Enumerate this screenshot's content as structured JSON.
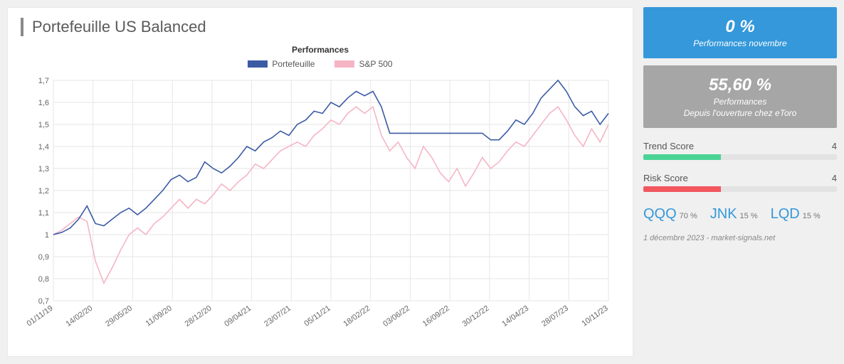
{
  "title": "Portefeuille US Balanced",
  "chart": {
    "title": "Performances",
    "legend": [
      {
        "label": "Portefeuille",
        "color": "#3b5ba5"
      },
      {
        "label": "S&P 500",
        "color": "#f5b5c5"
      }
    ],
    "y_ticks": [
      "0,7",
      "0,8",
      "0,9",
      "1",
      "1,1",
      "1,2",
      "1,3",
      "1,4",
      "1,5",
      "1,6",
      "1,7"
    ],
    "y_min": 0.7,
    "y_max": 1.7,
    "x_labels": [
      "01/11/19",
      "14/02/20",
      "29/05/20",
      "11/09/20",
      "28/12/20",
      "09/04/21",
      "23/07/21",
      "05/11/21",
      "18/02/22",
      "03/06/22",
      "16/09/22",
      "30/12/22",
      "14/04/23",
      "28/07/23",
      "10/11/23"
    ],
    "grid_color": "#e6e6e6",
    "background_color": "#ffffff",
    "line_width": 1.6,
    "series_portefeuille": {
      "color": "#3b5ba5",
      "values": [
        1.0,
        1.01,
        1.03,
        1.07,
        1.13,
        1.05,
        1.04,
        1.07,
        1.1,
        1.12,
        1.09,
        1.12,
        1.16,
        1.2,
        1.25,
        1.27,
        1.24,
        1.26,
        1.33,
        1.3,
        1.28,
        1.31,
        1.35,
        1.4,
        1.38,
        1.42,
        1.44,
        1.47,
        1.45,
        1.5,
        1.52,
        1.56,
        1.55,
        1.6,
        1.58,
        1.62,
        1.65,
        1.63,
        1.65,
        1.58,
        1.46,
        1.46,
        1.46,
        1.46,
        1.46,
        1.46,
        1.46,
        1.46,
        1.46,
        1.46,
        1.46,
        1.46,
        1.43,
        1.43,
        1.47,
        1.52,
        1.5,
        1.55,
        1.62,
        1.66,
        1.7,
        1.65,
        1.58,
        1.54,
        1.56,
        1.5,
        1.55
      ]
    },
    "series_sp500": {
      "color": "#f5b5c5",
      "values": [
        1.0,
        1.02,
        1.05,
        1.08,
        1.06,
        0.88,
        0.78,
        0.85,
        0.93,
        1.0,
        1.03,
        1.0,
        1.05,
        1.08,
        1.12,
        1.16,
        1.12,
        1.16,
        1.14,
        1.18,
        1.23,
        1.2,
        1.24,
        1.27,
        1.32,
        1.3,
        1.34,
        1.38,
        1.4,
        1.42,
        1.4,
        1.45,
        1.48,
        1.52,
        1.5,
        1.55,
        1.58,
        1.55,
        1.58,
        1.45,
        1.38,
        1.42,
        1.35,
        1.3,
        1.4,
        1.35,
        1.28,
        1.24,
        1.3,
        1.22,
        1.28,
        1.35,
        1.3,
        1.33,
        1.38,
        1.42,
        1.4,
        1.45,
        1.5,
        1.55,
        1.58,
        1.52,
        1.45,
        1.4,
        1.48,
        1.42,
        1.5
      ]
    }
  },
  "cards": {
    "blue": {
      "value": "0 %",
      "label": "Performances novembre",
      "bg": "#3498db"
    },
    "gray": {
      "value": "55,60 %",
      "label1": "Performances",
      "label2": "Depuis l'ouverture chez eToro",
      "bg": "#a6a6a6"
    }
  },
  "scores": {
    "trend": {
      "label": "Trend Score",
      "value": "4",
      "pct": 40,
      "color": "#4bd396"
    },
    "risk": {
      "label": "Risk Score",
      "value": "4",
      "pct": 40,
      "color": "#f25760"
    }
  },
  "holdings": [
    {
      "ticker": "QQQ",
      "pct": "70 %"
    },
    {
      "ticker": "JNK",
      "pct": "15 %"
    },
    {
      "ticker": "LQD",
      "pct": "15 %"
    }
  ],
  "footnote": "1 décembre 2023 - market-signals.net"
}
